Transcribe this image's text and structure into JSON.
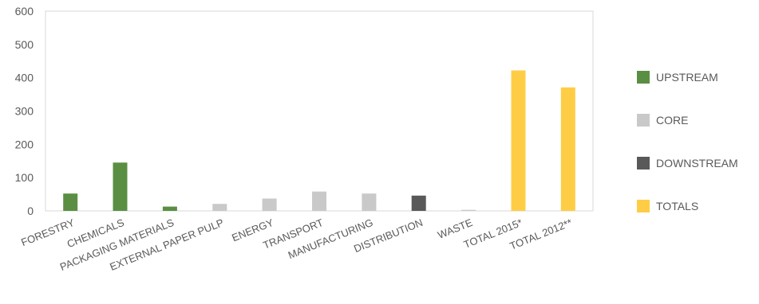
{
  "chart_data": {
    "type": "bar",
    "categories": [
      "FORESTRY",
      "CHEMICALS",
      "PACKAGING MATERIALS",
      "EXTERNAL PAPER PULP",
      "ENERGY",
      "TRANSPORT",
      "MANUFACTURING",
      "DISTRIBUTION",
      "WASTE",
      "TOTAL 2015*",
      "TOTAL 2012**"
    ],
    "values": [
      52,
      145,
      13,
      21,
      37,
      58,
      52,
      46,
      3,
      422,
      371
    ],
    "groups": [
      "UPSTREAM",
      "UPSTREAM",
      "UPSTREAM",
      "CORE",
      "CORE",
      "CORE",
      "CORE",
      "DOWNSTREAM",
      "CORE",
      "TOTALS",
      "TOTALS"
    ],
    "ylim": [
      0,
      600
    ],
    "yticks": [
      0,
      100,
      200,
      300,
      400,
      500,
      600
    ],
    "grid": false,
    "legend_position": "right",
    "legend": [
      {
        "name": "UPSTREAM",
        "color": "#5a8f43"
      },
      {
        "name": "CORE",
        "color": "#c9c9c9"
      },
      {
        "name": "DOWNSTREAM",
        "color": "#595959"
      },
      {
        "name": "TOTALS",
        "color": "#ffcd45"
      }
    ]
  }
}
